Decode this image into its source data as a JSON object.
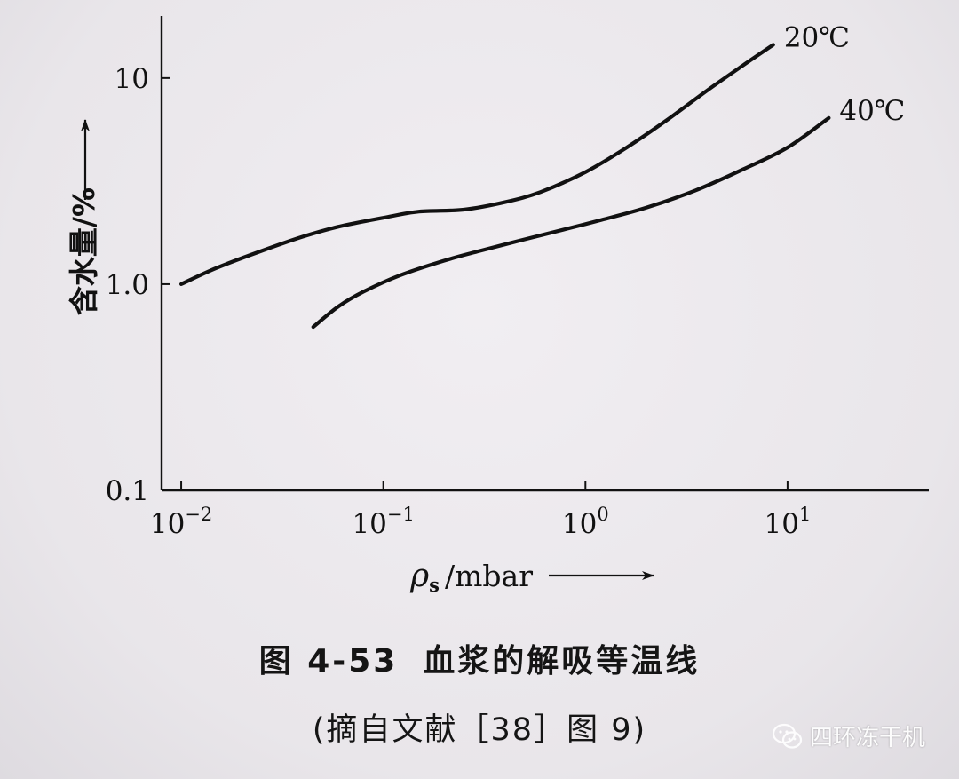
{
  "chart_data": {
    "type": "line",
    "x_scale": "log",
    "y_scale": "log",
    "xlim": [
      0.008,
      50
    ],
    "ylim": [
      0.1,
      20
    ],
    "x_ticks": [
      0.01,
      0.1,
      1,
      10
    ],
    "x_tick_labels": [
      {
        "base": "10",
        "exp": "−2"
      },
      {
        "base": "10",
        "exp": "−1"
      },
      {
        "base": "10",
        "exp": "0"
      },
      {
        "base": "10",
        "exp": "1"
      }
    ],
    "y_ticks": [
      0.1,
      1.0,
      10
    ],
    "y_tick_labels": [
      "0.1",
      "1.0",
      "10"
    ],
    "xlabel": {
      "symbol": "ρ",
      "subscript": "s",
      "unit": "/mbar"
    },
    "ylabel": "含水量/%",
    "grid": false,
    "legend": "inline labels at curve ends",
    "series": [
      {
        "name": "20℃",
        "x": [
          0.01,
          0.015,
          0.025,
          0.04,
          0.06,
          0.1,
          0.15,
          0.25,
          0.4,
          0.6,
          1.0,
          1.6,
          2.5,
          4,
          6,
          8.5
        ],
        "y": [
          1.0,
          1.2,
          1.45,
          1.7,
          1.9,
          2.1,
          2.25,
          2.3,
          2.5,
          2.8,
          3.5,
          4.6,
          6.2,
          8.7,
          11.5,
          14.5
        ]
      },
      {
        "name": "40℃",
        "x": [
          0.045,
          0.06,
          0.08,
          0.12,
          0.2,
          0.3,
          0.5,
          0.8,
          1.2,
          2.0,
          3.5,
          6,
          10,
          16
        ],
        "y": [
          0.62,
          0.78,
          0.92,
          1.1,
          1.3,
          1.45,
          1.65,
          1.85,
          2.05,
          2.35,
          2.85,
          3.6,
          4.6,
          6.4
        ]
      }
    ]
  },
  "caption": {
    "figure_number": "图 4-53",
    "title": "血浆的解吸等温线"
  },
  "source_note": "(摘自文献［38］图 9)",
  "watermark": {
    "icon": "wechat-icon",
    "text": "四环冻干机"
  }
}
